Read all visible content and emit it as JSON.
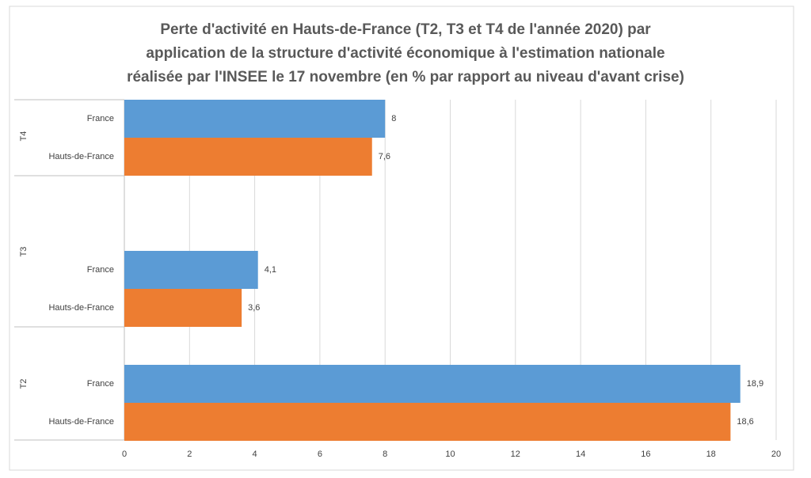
{
  "chart_data": {
    "type": "bar",
    "orientation": "horizontal",
    "title": [
      "Perte d'activité en Hauts-de-France  (T2, T3 et T4 de l'année 2020) par",
      "application  de la structure d'activité économique à l'estimation nationale",
      "réalisée par l'INSEE le 17 novembre (en % par rapport au niveau d'avant crise)"
    ],
    "groups": [
      "T4",
      "T3",
      "T2"
    ],
    "series": [
      {
        "name": "France",
        "color": "#5b9bd5",
        "values": [
          8,
          4.1,
          18.9
        ],
        "value_labels": [
          "8",
          "4,1",
          "18,9"
        ]
      },
      {
        "name": "Hauts-de-France",
        "color": "#ed7d31",
        "values": [
          7.6,
          3.6,
          18.6
        ],
        "value_labels": [
          "7,6",
          "3,6",
          "18,6"
        ]
      }
    ],
    "xlim": [
      0,
      20
    ],
    "xticks": [
      0,
      2,
      4,
      6,
      8,
      10,
      12,
      14,
      16,
      18,
      20
    ],
    "grid": true
  }
}
